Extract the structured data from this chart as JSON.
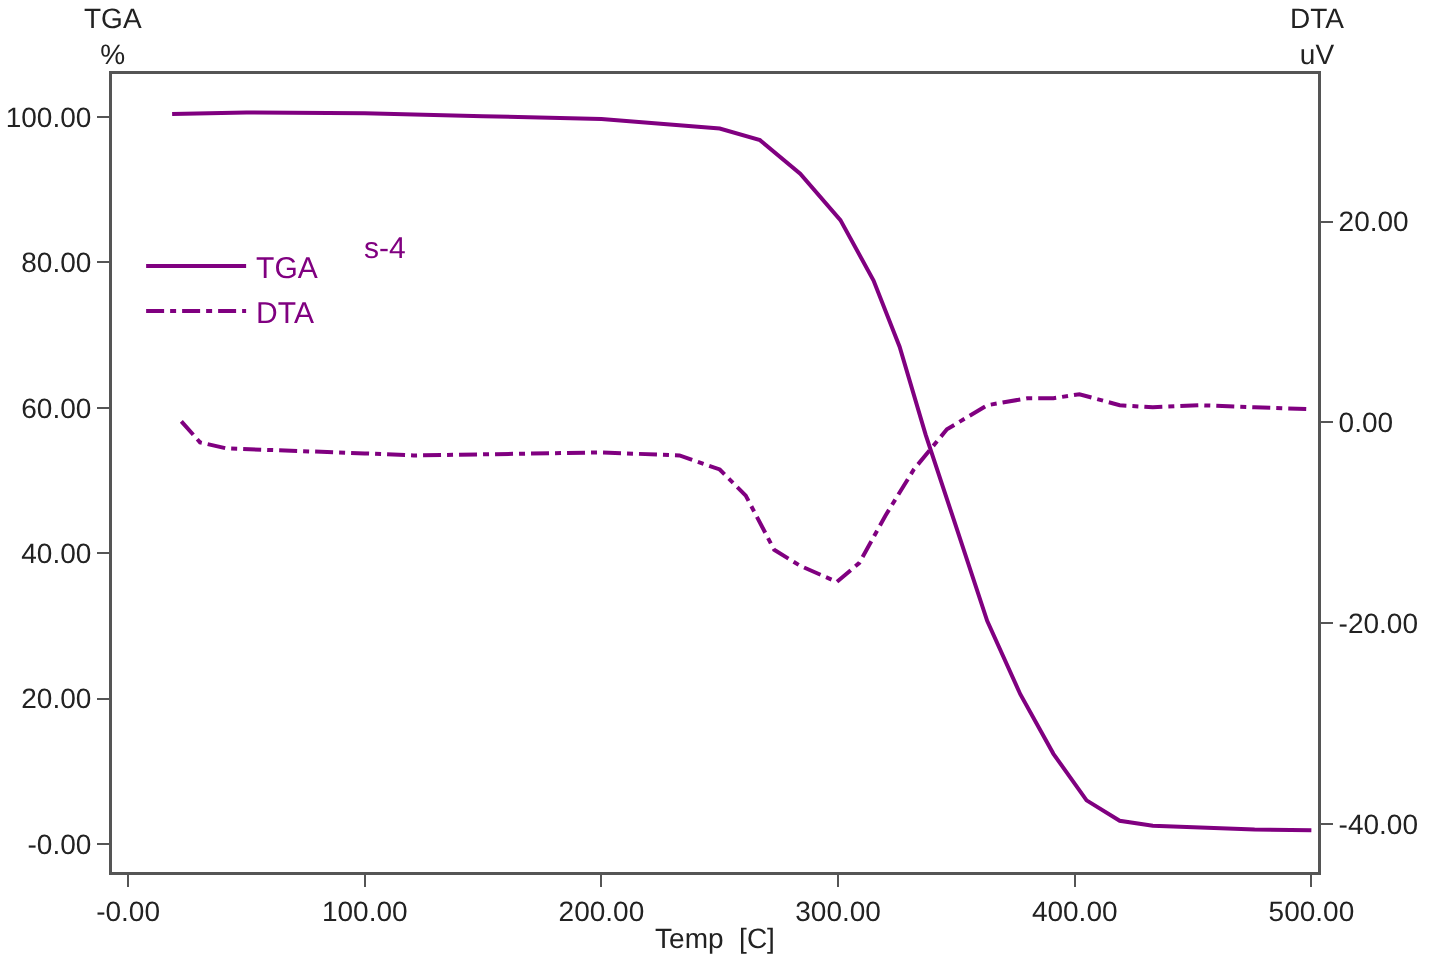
{
  "chart_data": {
    "type": "line",
    "xlabel": "Temp  [C]",
    "ylabel": "TGA\n%",
    "y2label": "DTA\nuV",
    "annotations": [
      "s-4"
    ],
    "xlim": [
      -6.8,
      502.8
    ],
    "xticks": [
      {
        "value": 0,
        "label": "-0.00"
      },
      {
        "value": 100,
        "label": "100.00"
      },
      {
        "value": 200,
        "label": "200.00"
      },
      {
        "value": 300,
        "label": "300.00"
      },
      {
        "value": 400,
        "label": "400.00"
      },
      {
        "value": 500,
        "label": "500.00"
      }
    ],
    "ylim": [
      -3.85,
      105.9
    ],
    "yticks": [
      {
        "value": 0,
        "label": "-0.00"
      },
      {
        "value": 20,
        "label": "20.00"
      },
      {
        "value": 40,
        "label": "40.00"
      },
      {
        "value": 60,
        "label": "60.00"
      },
      {
        "value": 80,
        "label": "80.00"
      },
      {
        "value": 100,
        "label": "100.00"
      }
    ],
    "y2lim": [
      -44.8,
      34.7
    ],
    "y2ticks": [
      {
        "value": -40,
        "label": "-40.00"
      },
      {
        "value": -20,
        "label": "-20.00"
      },
      {
        "value": 0,
        "label": "0.00"
      },
      {
        "value": 20,
        "label": "20.00"
      }
    ],
    "grid": false,
    "legend": "top left",
    "marker": "none",
    "series": [
      {
        "name": "TGA",
        "color": "#800080",
        "line_style": "solid",
        "x": [
          18.6,
          50,
          100,
          150,
          200,
          250,
          267,
          284,
          301,
          315,
          326,
          337,
          349,
          363,
          377,
          391,
          405,
          419,
          433,
          476,
          500
        ],
        "values": [
          100.4,
          100.6,
          100.5,
          100.1,
          99.7,
          98.4,
          96.8,
          92.2,
          85.8,
          77.5,
          68.4,
          56.3,
          44.5,
          30.7,
          20.6,
          12.4,
          6.0,
          3.2,
          2.5,
          2.0,
          1.9
        ]
      },
      {
        "name": "DTA",
        "color": "#800080",
        "line_style": "dashdot",
        "axis": "y2",
        "x": [
          22.5,
          30.4,
          41.5,
          100,
          120.6,
          200,
          233,
          250,
          261,
          273,
          284,
          299.5,
          309,
          320,
          332,
          346,
          363,
          380,
          391,
          402,
          419,
          433,
          453,
          476,
          500
        ],
        "values": [
          0.1,
          -2,
          -2.6,
          -3.1,
          -3.3,
          -3.0,
          -3.3,
          -4.7,
          -7.3,
          -12.7,
          -14.3,
          -15.9,
          -14,
          -9.3,
          -4.7,
          -0.7,
          1.7,
          2.4,
          2.4,
          2.8,
          1.7,
          1.5,
          1.7,
          1.5,
          1.3
        ]
      }
    ]
  }
}
